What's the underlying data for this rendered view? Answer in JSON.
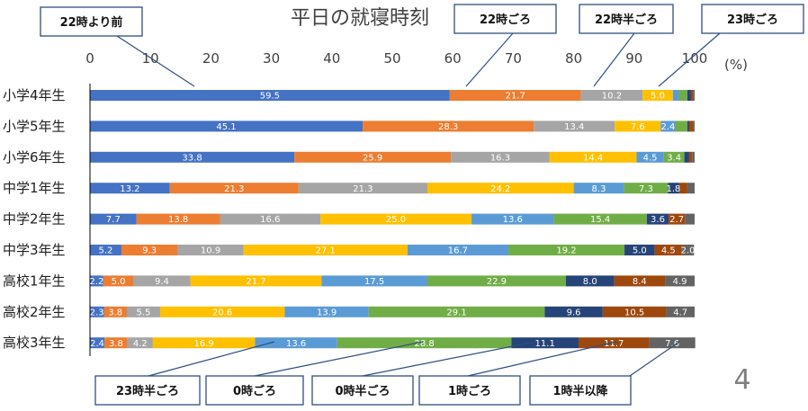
{
  "chart_data": {
    "type": "bar",
    "orientation": "horizontal",
    "stacked": true,
    "title": "平日の就寝時刻",
    "unit": "(%)",
    "xlim": [
      0,
      100
    ],
    "xticks": [
      "0",
      "10",
      "20",
      "30",
      "40",
      "50",
      "60",
      "70",
      "80",
      "90",
      "100"
    ],
    "categories": [
      "小学4年生",
      "小学5年生",
      "小学6年生",
      "中学1年生",
      "中学2年生",
      "中学3年生",
      "高校1年生",
      "高校2年生",
      "高校3年生"
    ],
    "series": [
      {
        "name": "22時より前",
        "color": "#4472c4",
        "values": [
          59.5,
          45.1,
          33.8,
          13.2,
          7.7,
          5.2,
          2.2,
          2.3,
          2.4
        ]
      },
      {
        "name": "22時ごろ",
        "color": "#ed7d31",
        "values": [
          21.7,
          28.3,
          25.9,
          21.3,
          13.8,
          9.3,
          5.0,
          3.8,
          3.8
        ]
      },
      {
        "name": "22時半ごろ",
        "color": "#a5a5a5",
        "values": [
          10.2,
          13.4,
          16.3,
          21.3,
          16.6,
          10.9,
          9.4,
          5.5,
          4.2
        ]
      },
      {
        "name": "23時ごろ",
        "color": "#ffc000",
        "values": [
          5.0,
          7.6,
          14.4,
          24.2,
          25.0,
          27.1,
          21.7,
          20.6,
          16.9
        ]
      },
      {
        "name": "23時半ごろ",
        "color": "#5b9bd5",
        "values": [
          1.0,
          2.4,
          4.5,
          8.3,
          13.6,
          16.7,
          17.5,
          13.9,
          13.6
        ]
      },
      {
        "name": "0時ごろ",
        "color": "#70ad47",
        "values": [
          1.4,
          2.0,
          3.4,
          7.3,
          15.4,
          19.2,
          22.9,
          29.1,
          28.8
        ]
      },
      {
        "name": "0時半ごろ",
        "color": "#264478",
        "values": [
          0.6,
          0.3,
          0.8,
          1.8,
          3.6,
          5.0,
          8.0,
          9.6,
          11.1
        ]
      },
      {
        "name": "1時ごろ",
        "color": "#9e480e",
        "values": [
          0.4,
          0.7,
          0.5,
          1.4,
          2.7,
          4.5,
          8.4,
          10.5,
          11.7
        ]
      },
      {
        "name": "1時半以降",
        "color": "#636363",
        "values": [
          0.2,
          0.2,
          0.4,
          1.2,
          1.6,
          2.0,
          4.9,
          4.7,
          7.6
        ]
      }
    ],
    "value_labels": [
      [
        "59.5",
        "21.7",
        "10.2",
        "5.0",
        "",
        "",
        "",
        "",
        ""
      ],
      [
        "45.1",
        "28.3",
        "13.4",
        "7.6",
        "2.4",
        "",
        "",
        "",
        ""
      ],
      [
        "33.8",
        "25.9",
        "16.3",
        "14.4",
        "4.5",
        "3.4",
        "",
        "",
        ""
      ],
      [
        "13.2",
        "21.3",
        "21.3",
        "24.2",
        "8.3",
        "7.3",
        "1.8",
        "",
        ""
      ],
      [
        "7.7",
        "13.8",
        "16.6",
        "25.0",
        "13.6",
        "15.4",
        "3.6",
        "2.7",
        ""
      ],
      [
        "5.2",
        "9.3",
        "10.9",
        "27.1",
        "16.7",
        "19.2",
        "5.0",
        "4.5",
        "2.0"
      ],
      [
        "2.2",
        "5.0",
        "9.4",
        "21.7",
        "17.5",
        "22.9",
        "8.0",
        "8.4",
        "4.9"
      ],
      [
        "2.3",
        "3.8",
        "5.5",
        "20.6",
        "13.9",
        "29.1",
        "9.6",
        "10.5",
        "4.7"
      ],
      [
        "2.4",
        "3.8",
        "4.2",
        "16.9",
        "13.6",
        "28.8",
        "11.1",
        "11.7",
        "7.6"
      ]
    ],
    "legend_placement": "callouts",
    "grid": false
  },
  "page": {
    "page_number": "4",
    "callouts_top": [
      "22時より前",
      "22時ごろ",
      "22時半ごろ",
      "23時ごろ"
    ],
    "callouts_bottom": [
      "23時半ごろ",
      "0時ごろ",
      "0時半ごろ",
      "1時ごろ",
      "1時半以降"
    ]
  }
}
